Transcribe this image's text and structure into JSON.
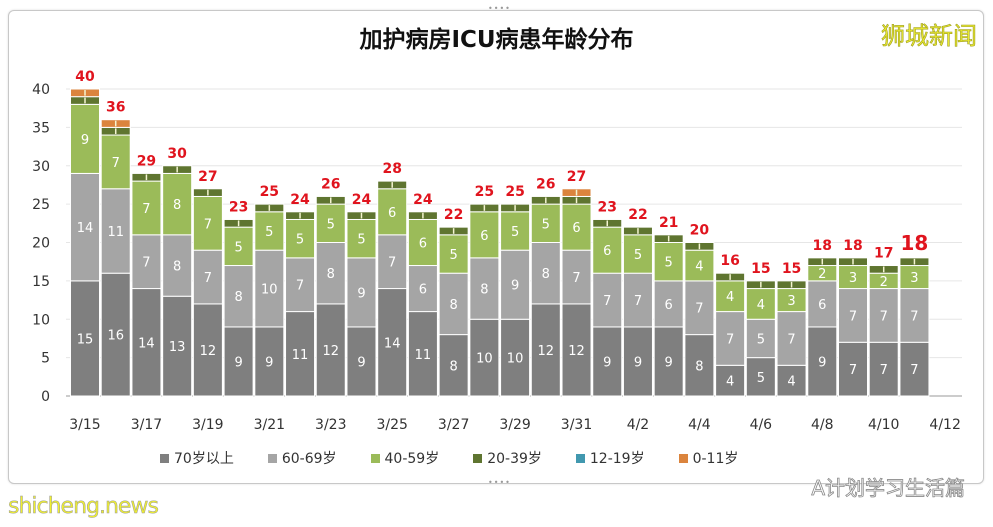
{
  "header": {
    "title": "加护病房ICU病患年龄分布",
    "brand": "狮城新闻"
  },
  "watermarks": {
    "left": "shicheng.news",
    "right": "A计划学习生活篇"
  },
  "chart_data": {
    "type": "bar",
    "stacked": true,
    "title": "加护病房ICU病患年龄分布",
    "xlabel": "",
    "ylabel": "",
    "ylim": [
      0,
      40
    ],
    "yticks": [
      0,
      5,
      10,
      15,
      20,
      25,
      30,
      35,
      40
    ],
    "grid": true,
    "legend_position": "bottom",
    "categories": [
      "3/15",
      "3/16",
      "3/17",
      "3/18",
      "3/19",
      "3/20",
      "3/21",
      "3/22",
      "3/23",
      "3/24",
      "3/25",
      "3/26",
      "3/27",
      "3/28",
      "3/29",
      "3/30",
      "3/31",
      "4/1",
      "4/2",
      "4/3",
      "4/4",
      "4/5",
      "4/6",
      "4/7",
      "4/8",
      "4/9",
      "4/10",
      "4/11"
    ],
    "xtick_labels": [
      "3/15",
      "3/17",
      "3/19",
      "3/21",
      "3/23",
      "3/25",
      "3/27",
      "3/29",
      "3/31",
      "4/2",
      "4/4",
      "4/6",
      "4/8",
      "4/10",
      "4/12"
    ],
    "series": [
      {
        "name": "70岁以上",
        "color": "#7f7f7f",
        "values": [
          15,
          16,
          14,
          13,
          12,
          9,
          9,
          11,
          12,
          9,
          14,
          11,
          8,
          10,
          10,
          12,
          12,
          9,
          9,
          9,
          8,
          4,
          5,
          4,
          9,
          7,
          7,
          7
        ]
      },
      {
        "name": "60-69岁",
        "color": "#a5a5a5",
        "values": [
          14,
          11,
          7,
          8,
          7,
          8,
          10,
          7,
          8,
          9,
          7,
          6,
          8,
          8,
          9,
          8,
          7,
          7,
          7,
          6,
          7,
          7,
          5,
          7,
          6,
          7,
          7,
          7
        ]
      },
      {
        "name": "40-59岁",
        "color": "#9bbb59",
        "values": [
          9,
          7,
          7,
          8,
          7,
          5,
          5,
          5,
          5,
          5,
          6,
          6,
          5,
          6,
          5,
          5,
          6,
          6,
          5,
          5,
          4,
          4,
          4,
          3,
          2,
          3,
          2,
          3
        ]
      },
      {
        "name": "20-39岁",
        "color": "#5f7530",
        "values": [
          1,
          1,
          1,
          1,
          1,
          1,
          1,
          1,
          1,
          1,
          1,
          1,
          1,
          1,
          1,
          1,
          1,
          1,
          1,
          1,
          1,
          1,
          1,
          1,
          1,
          1,
          1,
          1
        ]
      },
      {
        "name": "12-19岁",
        "color": "#4198af",
        "values": [
          0,
          0,
          0,
          0,
          0,
          0,
          0,
          0,
          0,
          0,
          0,
          0,
          0,
          0,
          0,
          0,
          0,
          0,
          0,
          0,
          0,
          0,
          0,
          0,
          0,
          0,
          0,
          0
        ]
      },
      {
        "name": "0-11岁",
        "color": "#db843d",
        "values": [
          1,
          1,
          0,
          0,
          0,
          0,
          0,
          0,
          0,
          0,
          0,
          0,
          0,
          0,
          0,
          0,
          1,
          0,
          0,
          0,
          0,
          0,
          0,
          0,
          0,
          0,
          0,
          0
        ]
      }
    ],
    "totals": [
      40,
      36,
      29,
      30,
      27,
      23,
      25,
      24,
      26,
      24,
      28,
      24,
      22,
      25,
      25,
      26,
      27,
      23,
      22,
      21,
      20,
      16,
      15,
      15,
      18,
      18,
      17,
      18
    ],
    "total_label_color": "#e0141e"
  }
}
